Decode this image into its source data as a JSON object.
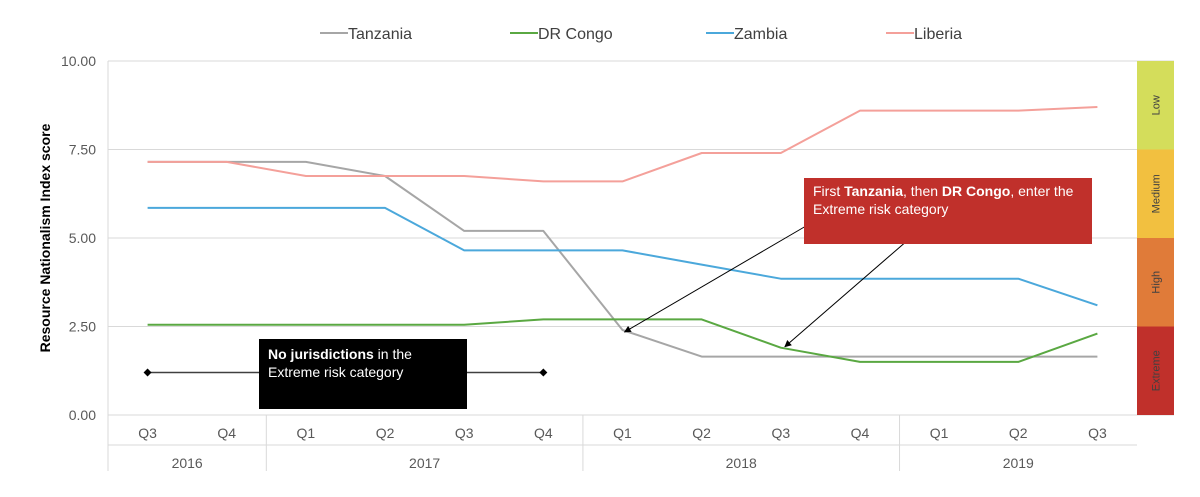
{
  "chart_data": {
    "type": "line",
    "ylabel": "Resource Nationalism Index score",
    "ylim": [
      0,
      10
    ],
    "yticks": [
      "0.00",
      "2.50",
      "5.00",
      "7.50",
      "10.00"
    ],
    "categories": [
      "Q3",
      "Q4",
      "Q1",
      "Q2",
      "Q3",
      "Q4",
      "Q1",
      "Q2",
      "Q3",
      "Q4",
      "Q1",
      "Q2",
      "Q3"
    ],
    "years": [
      {
        "label": "2016",
        "start": 0,
        "end": 1
      },
      {
        "label": "2017",
        "start": 2,
        "end": 5
      },
      {
        "label": "2018",
        "start": 6,
        "end": 9
      },
      {
        "label": "2019",
        "start": 10,
        "end": 12
      }
    ],
    "legend_position": "top",
    "series": [
      {
        "name": "Tanzania",
        "color": "#a6a6a6",
        "values": [
          7.15,
          7.15,
          7.15,
          6.75,
          5.2,
          5.2,
          2.4,
          1.65,
          1.65,
          1.65,
          1.65,
          1.65,
          1.65
        ]
      },
      {
        "name": "DR Congo",
        "color": "#5aa842",
        "values": [
          2.55,
          2.55,
          2.55,
          2.55,
          2.55,
          2.7,
          2.7,
          2.7,
          1.9,
          1.5,
          1.5,
          1.5,
          2.3
        ]
      },
      {
        "name": "Zambia",
        "color": "#4ba8db",
        "values": [
          5.85,
          5.85,
          5.85,
          5.85,
          4.65,
          4.65,
          4.65,
          4.25,
          3.85,
          3.85,
          3.85,
          3.85,
          3.1
        ]
      },
      {
        "name": "Liberia",
        "color": "#f4a09a",
        "values": [
          7.15,
          7.15,
          6.75,
          6.75,
          6.75,
          6.6,
          6.6,
          7.4,
          7.4,
          8.6,
          8.6,
          8.6,
          8.7
        ]
      }
    ],
    "risk_bands": [
      {
        "label": "Extreme",
        "from": 0,
        "to": 2.5,
        "color": "#c0302b"
      },
      {
        "label": "High",
        "from": 2.5,
        "to": 5,
        "color": "#e07b39"
      },
      {
        "label": "Medium",
        "from": 5,
        "to": 7.5,
        "color": "#f2c040"
      },
      {
        "label": "Low",
        "from": 7.5,
        "to": 10,
        "color": "#d4dd5b"
      }
    ],
    "marker_line": {
      "from_index": 0,
      "to_index": 5,
      "value": 1.2
    },
    "annotations": {
      "black_bold": "No jurisdictions",
      "black_rest": " in the Extreme risk category",
      "red_pre": "First ",
      "red_bold1": "Tanzania",
      "red_mid": ", then ",
      "red_bold2": "DR Congo",
      "red_post": ", enter the Extreme risk category"
    }
  }
}
